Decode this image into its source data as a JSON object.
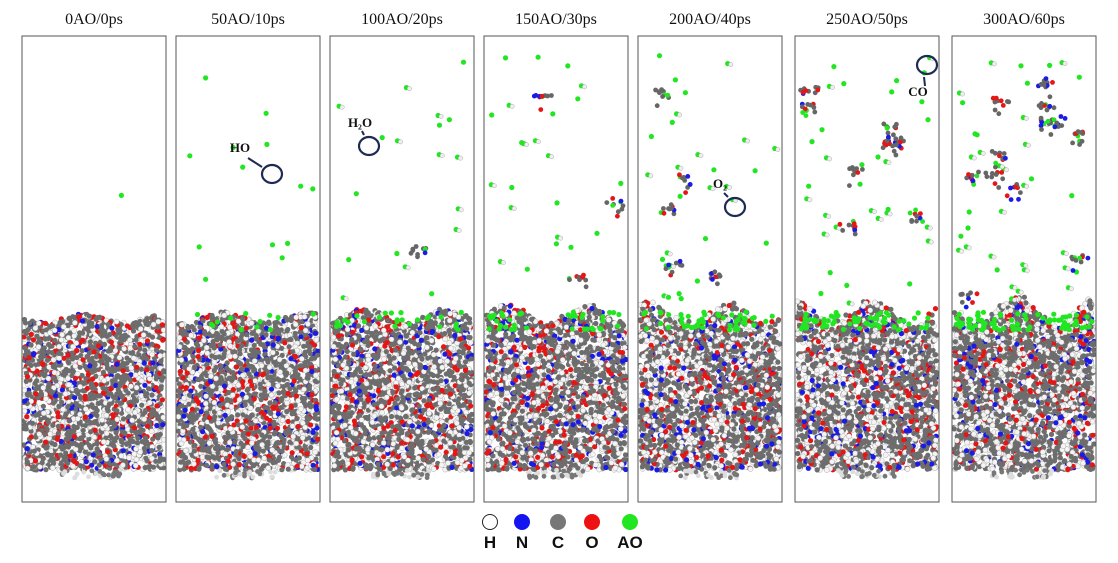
{
  "figure": {
    "panels": [
      {
        "label": "0AO/0ps",
        "ao": 0,
        "ps": 0,
        "annotation": ""
      },
      {
        "label": "50AO/10ps",
        "ao": 50,
        "ps": 10,
        "annotation": "HO"
      },
      {
        "label": "100AO/20ps",
        "ao": 100,
        "ps": 20,
        "annotation": "H₂O"
      },
      {
        "label": "150AO/30ps",
        "ao": 150,
        "ps": 30,
        "annotation": ""
      },
      {
        "label": "200AO/40ps",
        "ao": 200,
        "ps": 40,
        "annotation": "O₂"
      },
      {
        "label": "250AO/50ps",
        "ao": 250,
        "ps": 50,
        "annotation": "CO"
      },
      {
        "label": "300AO/60ps",
        "ao": 300,
        "ps": 60,
        "annotation": ""
      }
    ],
    "legend": [
      {
        "symbol": "H",
        "color": "#ffffff"
      },
      {
        "symbol": "N",
        "color": "#1414f0"
      },
      {
        "symbol": "C",
        "color": "#777777"
      },
      {
        "symbol": "O",
        "color": "#ee1111"
      },
      {
        "symbol": "AO",
        "color": "#22e622"
      }
    ]
  }
}
